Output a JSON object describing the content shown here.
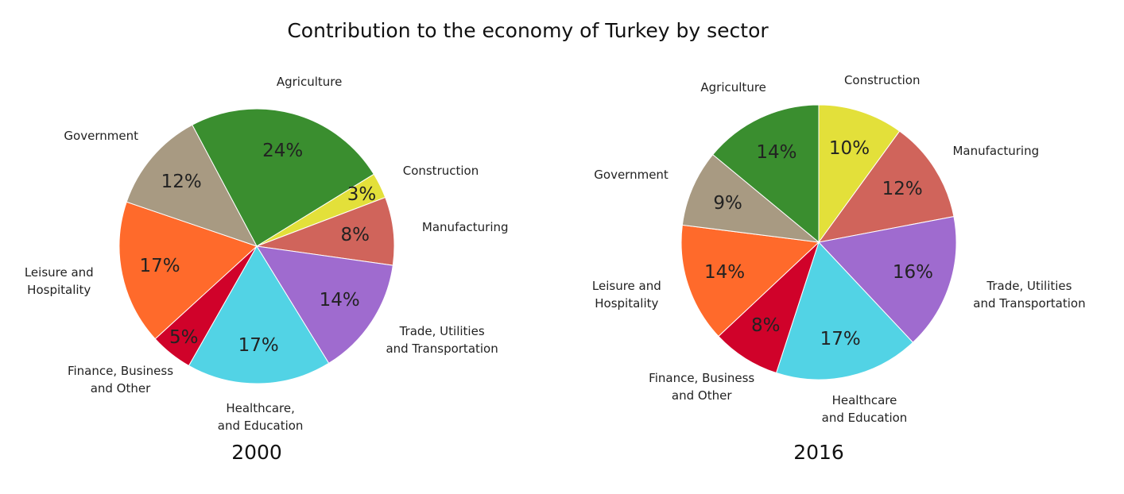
{
  "title": "Contribution to the economy of Turkey by sector",
  "chart_data": [
    {
      "type": "pie",
      "title": "2000",
      "categories": [
        "Agriculture",
        "Construction",
        "Manufacturing",
        "Trade, Utilities\nand Transportation",
        "Healthcare,\nand Education",
        "Finance, Business\nand Other",
        "Leisure and\nHospitality",
        "Government"
      ],
      "values": [
        24,
        3,
        8,
        14,
        17,
        5,
        17,
        12
      ],
      "value_labels": [
        "24%",
        "3%",
        "8%",
        "14%",
        "17%",
        "5%",
        "17%",
        "12%"
      ],
      "colors": [
        "#3a8e2f",
        "#e3e03a",
        "#d0645b",
        "#9f6bcf",
        "#52d3e5",
        "#d0022a",
        "#ff6a2b",
        "#a89a82"
      ]
    },
    {
      "type": "pie",
      "title": "2016",
      "categories": [
        "Agriculture",
        "Construction",
        "Manufacturing",
        "Trade, Utilities\nand Transportation",
        "Healthcare\nand Education",
        "Finance, Business\nand Other",
        "Leisure and\nHospitality",
        "Government"
      ],
      "values": [
        14,
        10,
        12,
        16,
        17,
        8,
        14,
        9
      ],
      "value_labels": [
        "14%",
        "10%",
        "12%",
        "16%",
        "17%",
        "8%",
        "14%",
        "9%"
      ],
      "colors": [
        "#3a8e2f",
        "#e3e03a",
        "#d0645b",
        "#9f6bcf",
        "#52d3e5",
        "#d0022a",
        "#ff6a2b",
        "#a89a82"
      ]
    }
  ]
}
